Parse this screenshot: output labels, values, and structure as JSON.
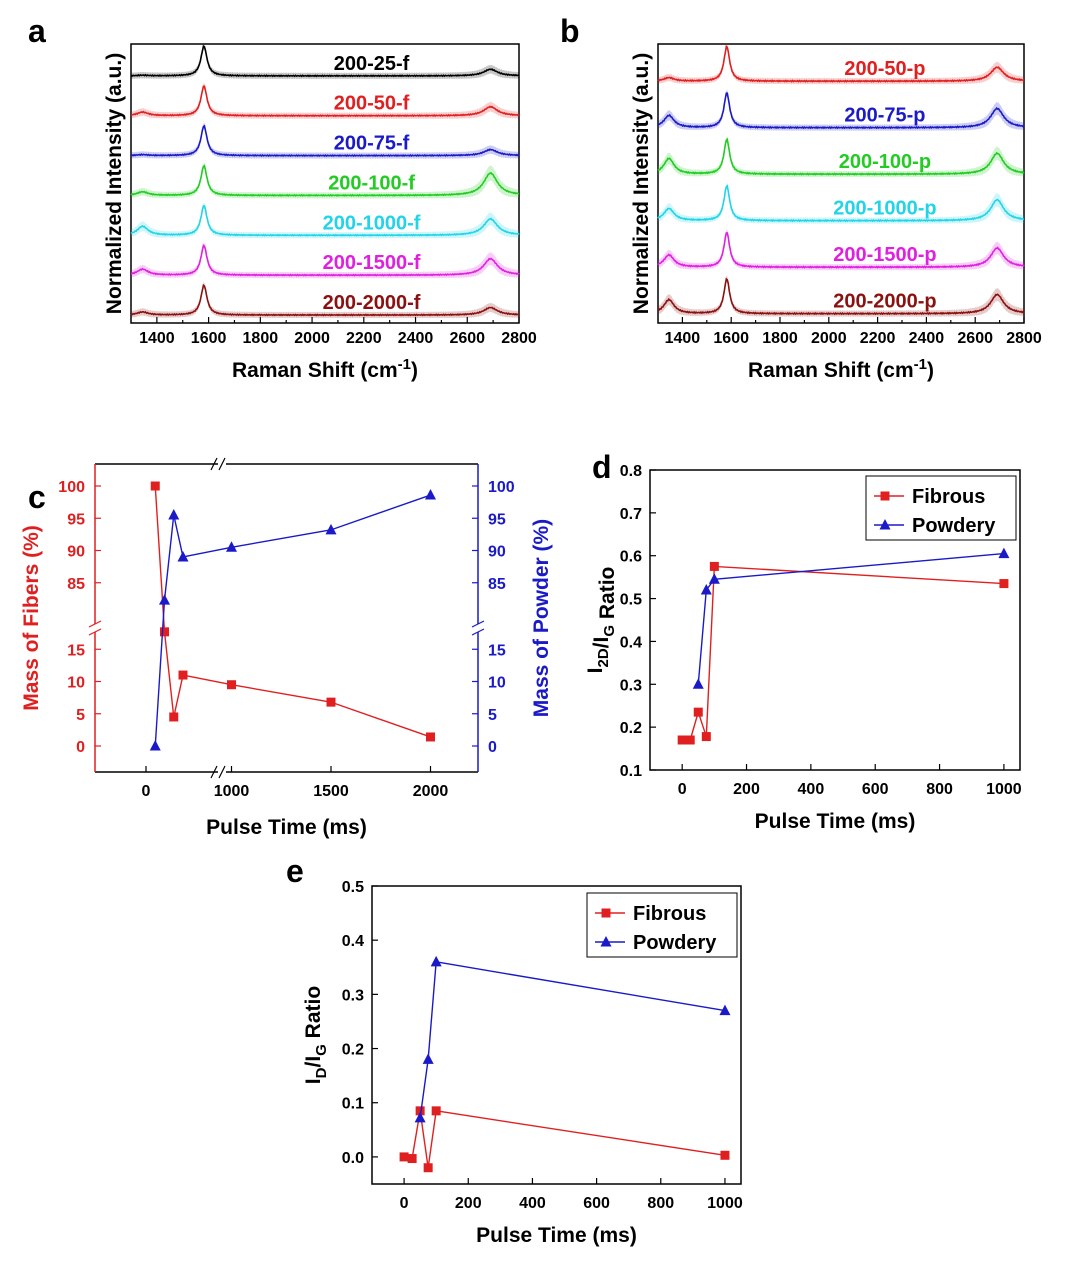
{
  "panel_letters": {
    "a": "a",
    "b": "b",
    "c": "c",
    "d": "d",
    "e": "e"
  },
  "chart_data": [
    {
      "id": "a",
      "type": "line",
      "title": "",
      "xlabel": "Raman Shift (cm-1)",
      "xlabel_main": "Raman Shift (cm",
      "xlabel_sup": "-1",
      "xlabel_close": ")",
      "ylabel": "Normalized Intensity (a.u.)",
      "xlim": [
        1300,
        2800
      ],
      "xticks": [
        1400,
        1600,
        1800,
        2000,
        2200,
        2400,
        2600,
        2800
      ],
      "series": [
        {
          "name": "200-25-f",
          "color": "#000000",
          "peaks": {
            "D": 0.02,
            "G": 1.0,
            "D2": 0.22
          }
        },
        {
          "name": "200-50-f",
          "color": "#e02020",
          "peaks": {
            "D": 0.12,
            "G": 1.0,
            "D2": 0.3
          }
        },
        {
          "name": "200-75-f",
          "color": "#1a1ac8",
          "peaks": {
            "D": 0.03,
            "G": 1.0,
            "D2": 0.2
          }
        },
        {
          "name": "200-100-f",
          "color": "#22cc22",
          "peaks": {
            "D": 0.12,
            "G": 1.0,
            "D2": 0.75
          }
        },
        {
          "name": "200-1000-f",
          "color": "#22d4e8",
          "peaks": {
            "D": 0.3,
            "G": 1.0,
            "D2": 0.55
          }
        },
        {
          "name": "200-1500-f",
          "color": "#e020e0",
          "peaks": {
            "D": 0.2,
            "G": 1.0,
            "D2": 0.55
          }
        },
        {
          "name": "200-2000-f",
          "color": "#8b1010",
          "peaks": {
            "D": 0.1,
            "G": 1.0,
            "D2": 0.25
          }
        }
      ]
    },
    {
      "id": "b",
      "type": "line",
      "title": "",
      "xlabel": "Raman Shift (cm-1)",
      "xlabel_main": "Raman Shift (cm",
      "xlabel_sup": "-1",
      "xlabel_close": ")",
      "ylabel": "Normalized Intensity (a.u.)",
      "xlim": [
        1300,
        2800
      ],
      "xticks": [
        1400,
        1600,
        1800,
        2000,
        2200,
        2400,
        2600,
        2800
      ],
      "series": [
        {
          "name": "200-50-p",
          "color": "#e02020",
          "peaks": {
            "D": 0.1,
            "G": 1.0,
            "D2": 0.4
          }
        },
        {
          "name": "200-75-p",
          "color": "#1a1ac8",
          "peaks": {
            "D": 0.35,
            "G": 1.0,
            "D2": 0.55
          }
        },
        {
          "name": "200-100-p",
          "color": "#22cc22",
          "peaks": {
            "D": 0.45,
            "G": 1.0,
            "D2": 0.6
          }
        },
        {
          "name": "200-1000-p",
          "color": "#22d4e8",
          "peaks": {
            "D": 0.35,
            "G": 1.0,
            "D2": 0.6
          }
        },
        {
          "name": "200-1500-p",
          "color": "#e020e0",
          "peaks": {
            "D": 0.35,
            "G": 1.0,
            "D2": 0.55
          }
        },
        {
          "name": "200-2000-p",
          "color": "#8b1010",
          "peaks": {
            "D": 0.4,
            "G": 1.0,
            "D2": 0.55
          }
        }
      ]
    },
    {
      "id": "c",
      "type": "line",
      "title": "",
      "xlabel": "Pulse Time (ms)",
      "ylabel_left": "Mass of Fibers (%)",
      "ylabel_right": "Mass of Powder (%)",
      "xticks": [
        0,
        1000,
        1500,
        2000
      ],
      "yticks_left_upper": [
        85,
        90,
        95,
        100
      ],
      "yticks_left_lower": [
        0,
        5,
        10,
        15
      ],
      "yticks_right_upper": [
        85,
        90,
        95,
        100
      ],
      "yticks_right_lower": [
        0,
        5,
        10,
        15
      ],
      "series": [
        {
          "name": "Fibers",
          "color": "#e02020",
          "marker": "square",
          "x": [
            25,
            50,
            75,
            100,
            1000,
            1500,
            2000
          ],
          "y": [
            100,
            17.7,
            4.5,
            11,
            9.5,
            6.8,
            1.4
          ]
        },
        {
          "name": "Powder",
          "color": "#1a1ac8",
          "marker": "triangle",
          "x": [
            25,
            50,
            75,
            100,
            1000,
            1500,
            2000
          ],
          "y": [
            0,
            82.3,
            95.5,
            89,
            90.5,
            93.2,
            98.6
          ]
        }
      ]
    },
    {
      "id": "d",
      "type": "line",
      "title": "",
      "xlabel": "Pulse Time (ms)",
      "ylabel": "I2D/IG Ratio",
      "xlim": [
        -100,
        1050
      ],
      "ylim": [
        0.1,
        0.8
      ],
      "xticks": [
        0,
        200,
        400,
        600,
        800,
        1000
      ],
      "yticks": [
        0.1,
        0.2,
        0.3,
        0.4,
        0.5,
        0.6,
        0.7,
        0.8
      ],
      "series": [
        {
          "name": "Fibrous",
          "color": "#e02020",
          "marker": "square",
          "x": [
            0,
            25,
            50,
            75,
            100,
            1000
          ],
          "y": [
            0.17,
            0.17,
            0.235,
            0.178,
            0.575,
            0.535
          ]
        },
        {
          "name": "Powdery",
          "color": "#1a1ac8",
          "marker": "triangle",
          "x": [
            50,
            75,
            100,
            1000
          ],
          "y": [
            0.3,
            0.52,
            0.545,
            0.605
          ]
        }
      ],
      "legend": "top-right"
    },
    {
      "id": "e",
      "type": "line",
      "title": "",
      "xlabel": "Pulse Time (ms)",
      "ylabel": "ID/IG Ratio",
      "xlim": [
        -100,
        1050
      ],
      "ylim": [
        -0.05,
        0.5
      ],
      "xticks": [
        0,
        200,
        400,
        600,
        800,
        1000
      ],
      "yticks": [
        0.0,
        0.1,
        0.2,
        0.3,
        0.4,
        0.5
      ],
      "series": [
        {
          "name": "Fibrous",
          "color": "#e02020",
          "marker": "square",
          "x": [
            0,
            25,
            50,
            75,
            100,
            1000
          ],
          "y": [
            0.0,
            -0.003,
            0.085,
            -0.02,
            0.085,
            0.003
          ]
        },
        {
          "name": "Powdery",
          "color": "#1a1ac8",
          "marker": "triangle",
          "x": [
            50,
            75,
            100,
            1000
          ],
          "y": [
            0.072,
            0.18,
            0.36,
            0.27
          ]
        }
      ],
      "legend": "top-right"
    }
  ]
}
